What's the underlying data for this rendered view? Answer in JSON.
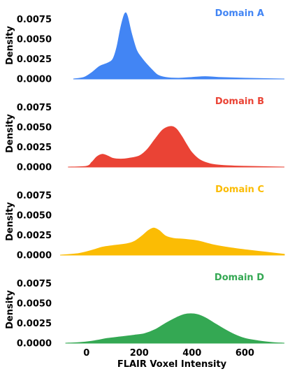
{
  "chart_data": {
    "type": "area",
    "xlabel": "FLAIR Voxel Intensity",
    "ylabel": "Density",
    "xlim": [
      -100,
      750
    ],
    "ylim": [
      0,
      0.0086
    ],
    "xticks": [
      "0",
      "200",
      "400",
      "600"
    ],
    "xtick_values": [
      0,
      200,
      400,
      600
    ],
    "yticks": [
      "0.0000",
      "0.0025",
      "0.0050",
      "0.0075"
    ],
    "ytick_values": [
      0,
      0.0025,
      0.005,
      0.0075
    ],
    "grid": false,
    "panels": [
      {
        "name": "Domain A",
        "color": "#4285F4",
        "x": [
          -50,
          -10,
          20,
          50,
          80,
          100,
          115,
          130,
          145,
          155,
          170,
          190,
          210,
          230,
          250,
          270,
          300,
          350,
          400,
          450,
          500,
          600,
          750
        ],
        "y": [
          0.0,
          0.0002,
          0.0008,
          0.0016,
          0.002,
          0.0025,
          0.004,
          0.0065,
          0.0082,
          0.0079,
          0.0058,
          0.0036,
          0.0026,
          0.0018,
          0.0011,
          0.0005,
          0.0002,
          0.0001,
          0.0002,
          0.0003,
          0.0002,
          0.0001,
          0.0
        ]
      },
      {
        "name": "Domain B",
        "color": "#EA4335",
        "x": [
          -70,
          0,
          20,
          40,
          60,
          80,
          100,
          130,
          160,
          200,
          230,
          260,
          290,
          320,
          340,
          360,
          380,
          400,
          430,
          470,
          520,
          600,
          750
        ],
        "y": [
          0.0,
          0.0001,
          0.0006,
          0.0013,
          0.0016,
          0.0014,
          0.0011,
          0.001,
          0.0011,
          0.0014,
          0.0022,
          0.0035,
          0.0047,
          0.0051,
          0.0048,
          0.0039,
          0.0028,
          0.0018,
          0.0009,
          0.0004,
          0.0002,
          0.0001,
          0.0
        ]
      },
      {
        "name": "Domain C",
        "color": "#FBBC04",
        "x": [
          -100,
          -30,
          20,
          60,
          100,
          150,
          180,
          210,
          235,
          255,
          275,
          300,
          330,
          370,
          420,
          480,
          550,
          620,
          700,
          750
        ],
        "y": [
          0.0,
          0.0002,
          0.0006,
          0.001,
          0.0012,
          0.0014,
          0.0017,
          0.0024,
          0.0031,
          0.0034,
          0.0031,
          0.0024,
          0.0021,
          0.002,
          0.0018,
          0.0013,
          0.0009,
          0.0006,
          0.0003,
          0.0001
        ]
      },
      {
        "name": "Domain D",
        "color": "#34A853",
        "x": [
          -80,
          -20,
          30,
          80,
          130,
          180,
          220,
          260,
          300,
          340,
          370,
          395,
          420,
          450,
          480,
          520,
          560,
          600,
          650,
          700,
          750
        ],
        "y": [
          0.0,
          0.0001,
          0.0003,
          0.0006,
          0.0008,
          0.001,
          0.0012,
          0.0017,
          0.0025,
          0.0032,
          0.0036,
          0.0037,
          0.0036,
          0.0032,
          0.0026,
          0.0018,
          0.0011,
          0.0006,
          0.0003,
          0.0001,
          0.0
        ]
      }
    ]
  }
}
